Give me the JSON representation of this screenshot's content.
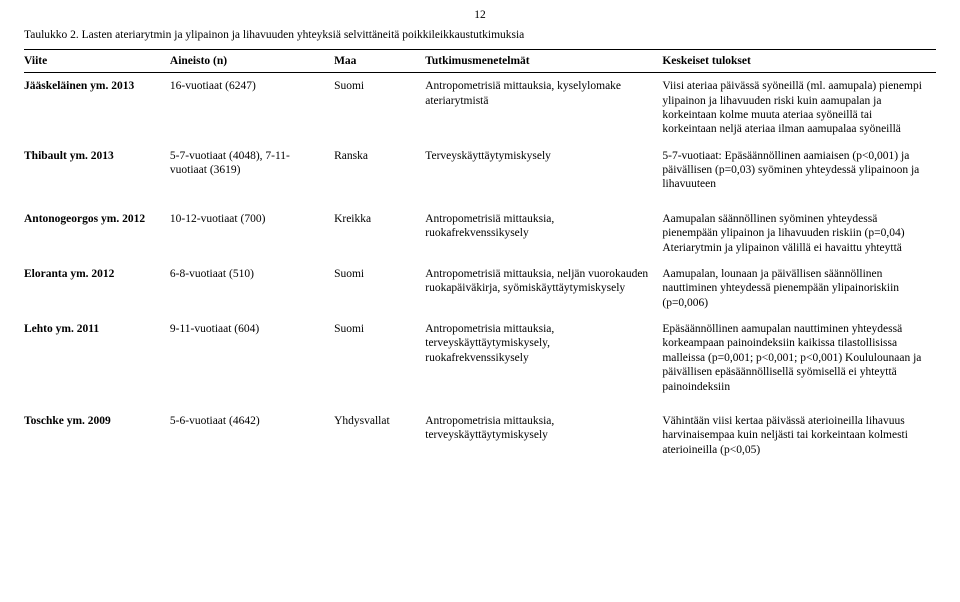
{
  "page_number": "12",
  "table_title": "Taulukko 2. Lasten ateriarytmin ja ylipainon ja lihavuuden yhteyksiä selvittäneitä poikkileikkaustutkimuksia",
  "columns": {
    "viite": "Viite",
    "aineisto": "Aineisto (n)",
    "maa": "Maa",
    "menetelmat": "Tutkimusmenetelmät",
    "tulokset": "Keskeiset tulokset"
  },
  "rows": [
    {
      "viite": "Jääskeläinen ym. 2013",
      "aineisto": "16-vuotiaat (6247)",
      "maa": "Suomi",
      "menetelmat": "Antropometrisiä mittauksia, kyselylomake ateriarytmistä",
      "tulokset": "Viisi ateriaa päivässä syöneillä (ml. aamupala) pienempi ylipainon ja lihavuuden riski kuin aamupalan ja korkeintaan kolme muuta ateriaa syöneillä tai korkeintaan neljä ateriaa ilman aamupalaa syöneillä"
    },
    {
      "viite": "Thibault ym. 2013",
      "aineisto": "5-7-vuotiaat (4048), 7-11-vuotiaat (3619)",
      "maa": "Ranska",
      "menetelmat": "Terveyskäyttäytymiskysely",
      "tulokset": "5-7-vuotiaat: Epäsäännöllinen aamiaisen (p<0,001) ja päivällisen (p=0,03) syöminen yhteydessä ylipainoon ja lihavuuteen"
    },
    {
      "viite": "Antonogeorgos ym. 2012",
      "aineisto": "10-12-vuotiaat (700)",
      "maa": "Kreikka",
      "menetelmat": "Antropometrisiä mittauksia, ruokafrekvenssikysely",
      "tulokset": "Aamupalan säännöllinen syöminen yhteydessä pienempään ylipainon ja lihavuuden riskiin (p=0,04)\nAteriarytmin ja ylipainon välillä ei havaittu yhteyttä"
    },
    {
      "viite": "Eloranta ym. 2012",
      "aineisto": "6-8-vuotiaat (510)",
      "maa": "Suomi",
      "menetelmat": "Antropometrisiä mittauksia, neljän vuorokauden ruokapäiväkirja, syömiskäyttäytymiskysely",
      "tulokset": "Aamupalan, lounaan ja päivällisen säännöllinen nauttiminen yhteydessä pienempään ylipainoriskiin (p=0,006)"
    },
    {
      "viite": "Lehto ym. 2011",
      "aineisto": "9-11-vuotiaat (604)",
      "maa": "Suomi",
      "menetelmat": "Antropometrisia mittauksia, terveyskäyttäytymiskysely, ruokafrekvenssikysely",
      "tulokset": "Epäsäännöllinen aamupalan nauttiminen yhteydessä korkeampaan painoindeksiin kaikissa tilastollisissa malleissa (p=0,001; p<0,001; p<0,001)\nKoululounaan ja päivällisen epäsäännöllisellä syömisellä ei yhteyttä painoindeksiin"
    },
    {
      "viite": "Toschke ym. 2009",
      "aineisto": "5-6-vuotiaat (4642)",
      "maa": "Yhdysvallat",
      "menetelmat": "Antropometrisia mittauksia, terveyskäyttäytymiskysely",
      "tulokset": "Vähintään viisi kertaa päivässä aterioineilla lihavuus harvinaisempaa kuin neljästi tai korkeintaan kolmesti aterioineilla (p<0,05)"
    }
  ]
}
